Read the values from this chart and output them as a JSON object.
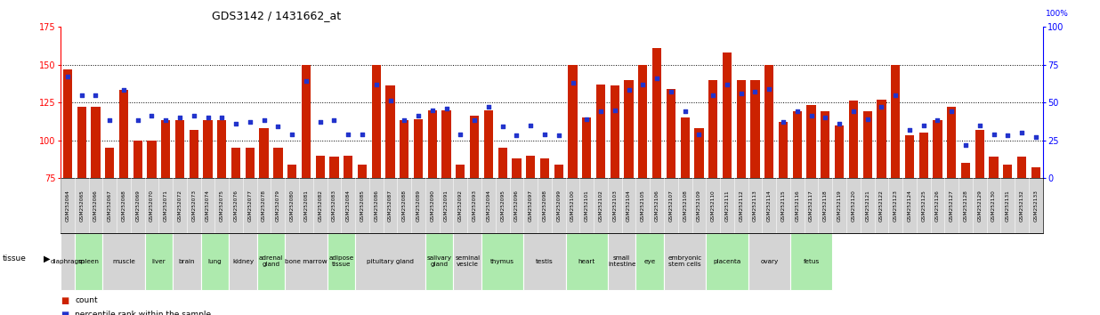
{
  "title": "GDS3142 / 1431662_at",
  "bar_color": "#cc2200",
  "dot_color": "#2233cc",
  "bar_bottom": 75,
  "ylim_left": [
    75,
    175
  ],
  "ylim_right": [
    0,
    100
  ],
  "yticks_left": [
    75,
    100,
    125,
    150,
    175
  ],
  "yticks_right": [
    0,
    25,
    50,
    75,
    100
  ],
  "gsm_ids": [
    "GSM252064",
    "GSM252065",
    "GSM252066",
    "GSM252067",
    "GSM252068",
    "GSM252069",
    "GSM252070",
    "GSM252071",
    "GSM252072",
    "GSM252073",
    "GSM252074",
    "GSM252075",
    "GSM252076",
    "GSM252077",
    "GSM252078",
    "GSM252079",
    "GSM252080",
    "GSM252081",
    "GSM252082",
    "GSM252083",
    "GSM252084",
    "GSM252085",
    "GSM252086",
    "GSM252087",
    "GSM252088",
    "GSM252089",
    "GSM252090",
    "GSM252091",
    "GSM252092",
    "GSM252093",
    "GSM252094",
    "GSM252095",
    "GSM252096",
    "GSM252097",
    "GSM252098",
    "GSM252099",
    "GSM252100",
    "GSM252101",
    "GSM252102",
    "GSM252103",
    "GSM252104",
    "GSM252105",
    "GSM252106",
    "GSM252107",
    "GSM252108",
    "GSM252109",
    "GSM252110",
    "GSM252111",
    "GSM252112",
    "GSM252113",
    "GSM252114",
    "GSM252115",
    "GSM252116",
    "GSM252117",
    "GSM252118",
    "GSM252119",
    "GSM252120",
    "GSM252121",
    "GSM252122",
    "GSM252123",
    "GSM252124",
    "GSM252125",
    "GSM252126",
    "GSM252127",
    "GSM252128",
    "GSM252129",
    "GSM252130",
    "GSM252131",
    "GSM252132",
    "GSM252133"
  ],
  "bar_heights": [
    147,
    122,
    122,
    95,
    133,
    100,
    100,
    113,
    113,
    107,
    113,
    113,
    95,
    95,
    108,
    95,
    84,
    150,
    90,
    89,
    90,
    84,
    150,
    136,
    113,
    114,
    120,
    120,
    84,
    116,
    120,
    95,
    88,
    90,
    88,
    84,
    150,
    115,
    137,
    136,
    140,
    150,
    161,
    134,
    115,
    108,
    140,
    158,
    140,
    140,
    150,
    112,
    119,
    123,
    119,
    110,
    126,
    119,
    127,
    150,
    103,
    105,
    113,
    122,
    85,
    107,
    89,
    84,
    89,
    82
  ],
  "dot_heights": [
    142,
    130,
    130,
    113,
    133,
    113,
    116,
    113,
    115,
    116,
    115,
    115,
    111,
    112,
    113,
    109,
    104,
    139,
    112,
    113,
    104,
    104,
    137,
    126,
    113,
    116,
    120,
    121,
    104,
    113,
    122,
    109,
    103,
    110,
    104,
    103,
    138,
    114,
    119,
    120,
    133,
    137,
    141,
    132,
    119,
    104,
    130,
    137,
    131,
    132,
    134,
    112,
    119,
    116,
    115,
    111,
    119,
    114,
    122,
    130,
    107,
    110,
    113,
    119,
    97,
    110,
    104,
    103,
    105,
    102
  ],
  "tissues": [
    {
      "label": "diaphragm",
      "start": 0,
      "end": 1,
      "color": "#d4d4d4"
    },
    {
      "label": "spleen",
      "start": 1,
      "end": 3,
      "color": "#aeeaae"
    },
    {
      "label": "muscle",
      "start": 3,
      "end": 6,
      "color": "#d4d4d4"
    },
    {
      "label": "liver",
      "start": 6,
      "end": 8,
      "color": "#aeeaae"
    },
    {
      "label": "brain",
      "start": 8,
      "end": 10,
      "color": "#d4d4d4"
    },
    {
      "label": "lung",
      "start": 10,
      "end": 12,
      "color": "#aeeaae"
    },
    {
      "label": "kidney",
      "start": 12,
      "end": 14,
      "color": "#d4d4d4"
    },
    {
      "label": "adrenal\ngland",
      "start": 14,
      "end": 16,
      "color": "#aeeaae"
    },
    {
      "label": "bone marrow",
      "start": 16,
      "end": 19,
      "color": "#d4d4d4"
    },
    {
      "label": "adipose\ntissue",
      "start": 19,
      "end": 21,
      "color": "#aeeaae"
    },
    {
      "label": "pituitary gland",
      "start": 21,
      "end": 26,
      "color": "#d4d4d4"
    },
    {
      "label": "salivary\ngland",
      "start": 26,
      "end": 28,
      "color": "#aeeaae"
    },
    {
      "label": "seminal\nvesicle",
      "start": 28,
      "end": 30,
      "color": "#d4d4d4"
    },
    {
      "label": "thymus",
      "start": 30,
      "end": 33,
      "color": "#aeeaae"
    },
    {
      "label": "testis",
      "start": 33,
      "end": 36,
      "color": "#d4d4d4"
    },
    {
      "label": "heart",
      "start": 36,
      "end": 39,
      "color": "#aeeaae"
    },
    {
      "label": "small\nintestine",
      "start": 39,
      "end": 41,
      "color": "#d4d4d4"
    },
    {
      "label": "eye",
      "start": 41,
      "end": 43,
      "color": "#aeeaae"
    },
    {
      "label": "embryonic\nstem cells",
      "start": 43,
      "end": 46,
      "color": "#d4d4d4"
    },
    {
      "label": "placenta",
      "start": 46,
      "end": 49,
      "color": "#aeeaae"
    },
    {
      "label": "ovary",
      "start": 49,
      "end": 52,
      "color": "#d4d4d4"
    },
    {
      "label": "fetus",
      "start": 52,
      "end": 55,
      "color": "#aeeaae"
    }
  ],
  "n_total": 70,
  "background_color": "#ffffff"
}
